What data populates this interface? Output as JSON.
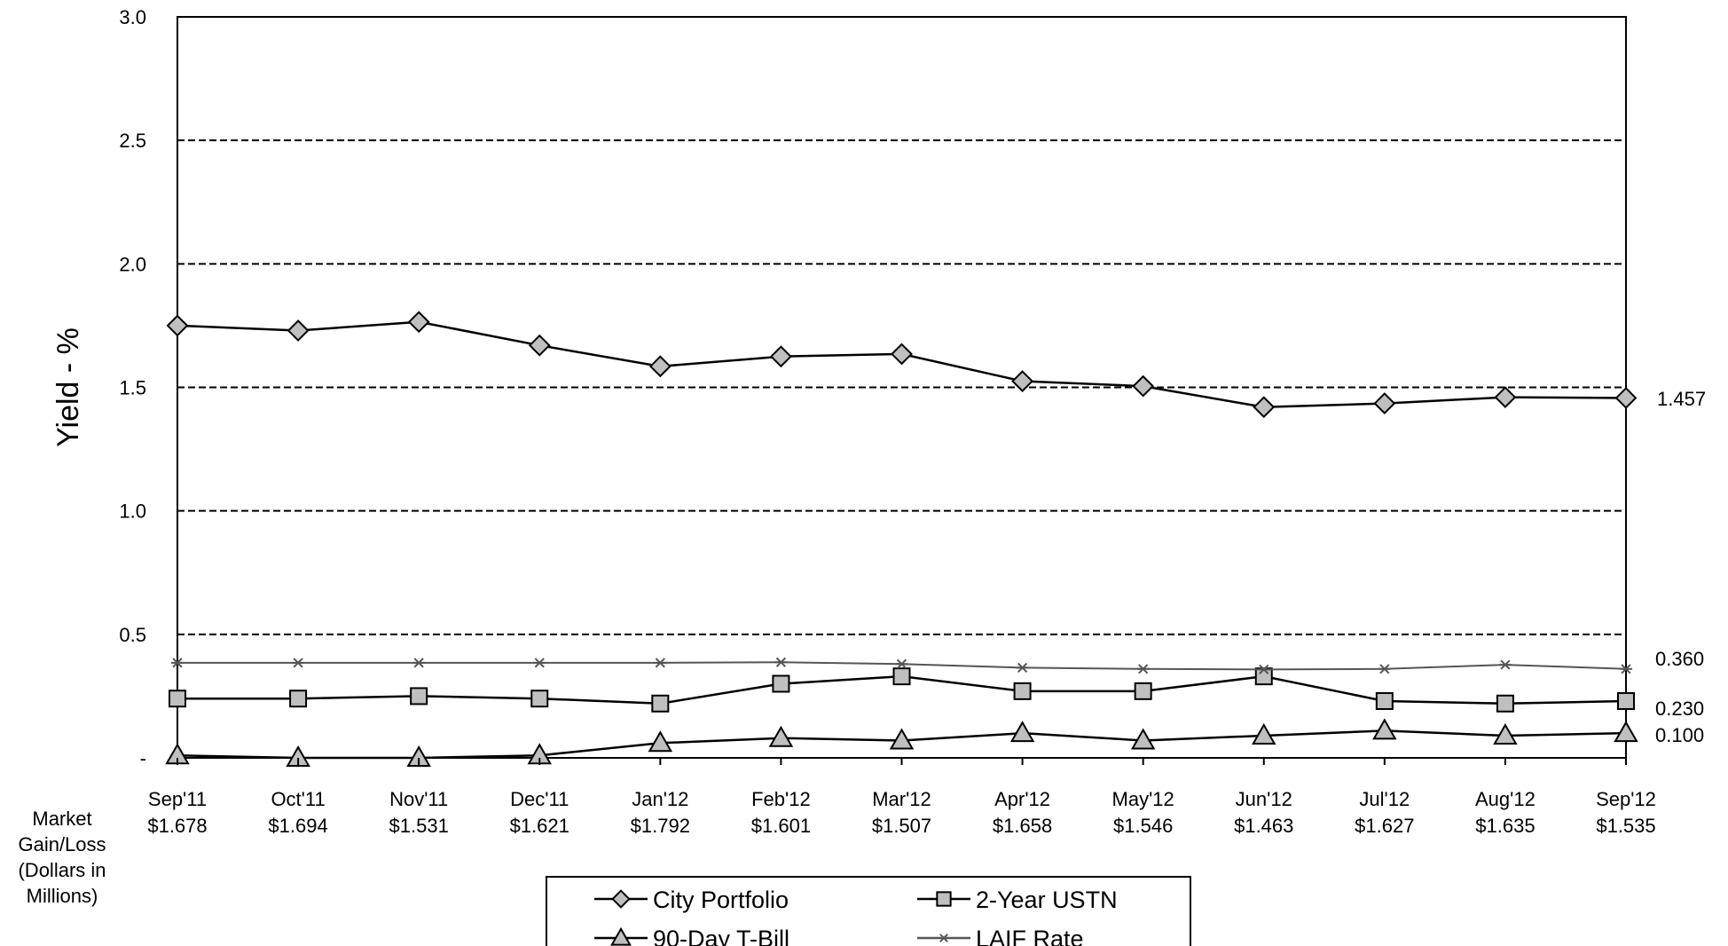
{
  "chart_data": {
    "type": "line",
    "ylabel": "Yield - %",
    "ylim": [
      0,
      3.0
    ],
    "yticks": [
      {
        "value": 0,
        "label": "-"
      },
      {
        "value": 0.5,
        "label": "0.5"
      },
      {
        "value": 1.0,
        "label": "1.0"
      },
      {
        "value": 1.5,
        "label": "1.5"
      },
      {
        "value": 2.0,
        "label": "2.0"
      },
      {
        "value": 2.5,
        "label": "2.5"
      },
      {
        "value": 3.0,
        "label": "3.0"
      }
    ],
    "grid": "dashed horizontal",
    "categories": [
      "Sep'11",
      "Oct'11",
      "Nov'11",
      "Dec'11",
      "Jan'12",
      "Feb'12",
      "Mar'12",
      "Apr'12",
      "May'12",
      "Jun'12",
      "Jul'12",
      "Aug'12",
      "Sep'12"
    ],
    "market_gain_loss_title": [
      "Market",
      "Gain/Loss",
      "(Dollars in",
      "Millions)"
    ],
    "market_gain_loss": [
      "$1.678",
      "$1.694",
      "$1.531",
      "$1.621",
      "$1.792",
      "$1.601",
      "$1.507",
      "$1.658",
      "$1.546",
      "$1.463",
      "$1.627",
      "$1.635",
      "$1.535"
    ],
    "series": [
      {
        "name": "City Portfolio",
        "marker": "diamond",
        "color": "#000000",
        "end_label": "1.457",
        "values": [
          1.75,
          1.73,
          1.765,
          1.67,
          1.585,
          1.625,
          1.635,
          1.525,
          1.505,
          1.42,
          1.435,
          1.46,
          1.457
        ]
      },
      {
        "name": "2-Year USTN",
        "marker": "square",
        "color": "#000000",
        "end_label": "0.230",
        "values": [
          0.24,
          0.24,
          0.25,
          0.24,
          0.22,
          0.3,
          0.33,
          0.27,
          0.27,
          0.33,
          0.23,
          0.22,
          0.23
        ]
      },
      {
        "name": "90-Day T-Bill",
        "marker": "triangle",
        "color": "#000000",
        "end_label": "0.100",
        "values": [
          0.01,
          0.0,
          0.0,
          0.01,
          0.06,
          0.08,
          0.07,
          0.1,
          0.07,
          0.09,
          0.11,
          0.09,
          0.1
        ]
      },
      {
        "name": "LAIF Rate",
        "marker": "asterisk",
        "color": "#555555",
        "end_label": "0.360",
        "values": [
          0.385,
          0.385,
          0.385,
          0.385,
          0.385,
          0.387,
          0.38,
          0.365,
          0.36,
          0.358,
          0.36,
          0.377,
          0.36
        ]
      }
    ],
    "legend_placement": "bottom-center"
  }
}
